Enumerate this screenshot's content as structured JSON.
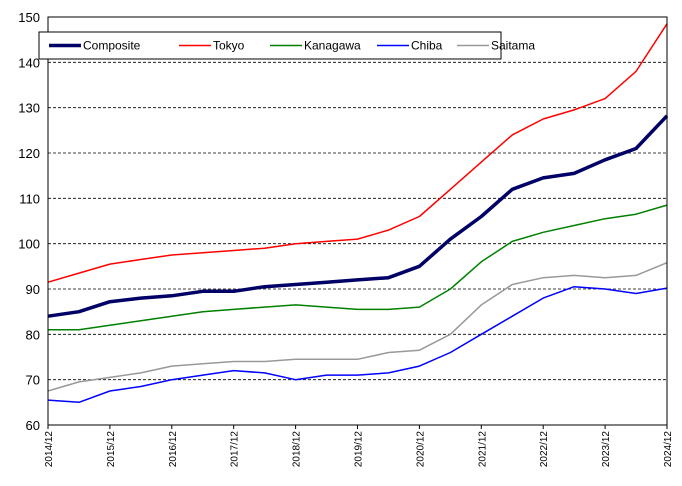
{
  "chart_data": {
    "type": "line",
    "title": "",
    "xlabel": "",
    "ylabel": "",
    "ylim": [
      60,
      150
    ],
    "yticks": [
      60,
      70,
      80,
      90,
      100,
      110,
      120,
      130,
      140,
      150
    ],
    "grid": "horizontal dashed",
    "legend_position": "top-left",
    "x_ticks": [
      "2014/12",
      "2015/12",
      "2016/12",
      "2017/12",
      "2018/12",
      "2019/12",
      "2020/12",
      "2021/12",
      "2022/12",
      "2023/12",
      "2024/12"
    ],
    "x_start": "2014/12",
    "x_end": "2024/12",
    "series": [
      {
        "name": "Composite",
        "color": "#000066",
        "points": [
          [
            0,
            84
          ],
          [
            6,
            85
          ],
          [
            12,
            87.2
          ],
          [
            18,
            88
          ],
          [
            24,
            88.5
          ],
          [
            30,
            89.5
          ],
          [
            36,
            89.5
          ],
          [
            42,
            90.5
          ],
          [
            48,
            91
          ],
          [
            54,
            91.5
          ],
          [
            60,
            92
          ],
          [
            66,
            92.5
          ],
          [
            72,
            95
          ],
          [
            78,
            101
          ],
          [
            84,
            106
          ],
          [
            90,
            112
          ],
          [
            96,
            114.5
          ],
          [
            102,
            115.5
          ],
          [
            108,
            118.5
          ],
          [
            114,
            121
          ],
          [
            120,
            128.2
          ]
        ]
      },
      {
        "name": "Tokyo",
        "color": "#ff0000",
        "points": [
          [
            0,
            91.5
          ],
          [
            6,
            93.5
          ],
          [
            12,
            95.5
          ],
          [
            18,
            96.5
          ],
          [
            24,
            97.5
          ],
          [
            30,
            98
          ],
          [
            36,
            98.5
          ],
          [
            42,
            99
          ],
          [
            48,
            100
          ],
          [
            54,
            100.5
          ],
          [
            60,
            101
          ],
          [
            66,
            103
          ],
          [
            72,
            106
          ],
          [
            78,
            112
          ],
          [
            84,
            118
          ],
          [
            90,
            124
          ],
          [
            96,
            127.5
          ],
          [
            102,
            129.5
          ],
          [
            108,
            132
          ],
          [
            114,
            138
          ],
          [
            120,
            148.5
          ]
        ]
      },
      {
        "name": "Kanagawa",
        "color": "#008000",
        "points": [
          [
            0,
            81
          ],
          [
            6,
            81
          ],
          [
            12,
            82
          ],
          [
            18,
            83
          ],
          [
            24,
            84
          ],
          [
            30,
            85
          ],
          [
            36,
            85.5
          ],
          [
            42,
            86
          ],
          [
            48,
            86.5
          ],
          [
            54,
            86
          ],
          [
            60,
            85.5
          ],
          [
            66,
            85.5
          ],
          [
            72,
            86
          ],
          [
            78,
            90
          ],
          [
            84,
            96
          ],
          [
            90,
            100.5
          ],
          [
            96,
            102.5
          ],
          [
            102,
            104
          ],
          [
            108,
            105.5
          ],
          [
            114,
            106.5
          ],
          [
            120,
            108.5
          ]
        ]
      },
      {
        "name": "Chiba",
        "color": "#0000ff",
        "points": [
          [
            0,
            65.5
          ],
          [
            6,
            65
          ],
          [
            12,
            67.5
          ],
          [
            18,
            68.5
          ],
          [
            24,
            70
          ],
          [
            30,
            71
          ],
          [
            36,
            72
          ],
          [
            42,
            71.5
          ],
          [
            48,
            70
          ],
          [
            54,
            71
          ],
          [
            60,
            71
          ],
          [
            66,
            71.5
          ],
          [
            72,
            73
          ],
          [
            78,
            76
          ],
          [
            84,
            80
          ],
          [
            90,
            84
          ],
          [
            96,
            88
          ],
          [
            102,
            90.5
          ],
          [
            108,
            90
          ],
          [
            114,
            89
          ],
          [
            120,
            90.2
          ]
        ]
      },
      {
        "name": "Saitama",
        "color": "#999999",
        "points": [
          [
            0,
            67.5
          ],
          [
            6,
            69.5
          ],
          [
            12,
            70.5
          ],
          [
            18,
            71.5
          ],
          [
            24,
            73
          ],
          [
            30,
            73.5
          ],
          [
            36,
            74
          ],
          [
            42,
            74
          ],
          [
            48,
            74.5
          ],
          [
            54,
            74.5
          ],
          [
            60,
            74.5
          ],
          [
            66,
            76
          ],
          [
            72,
            76.5
          ],
          [
            78,
            80
          ],
          [
            84,
            86.5
          ],
          [
            90,
            91
          ],
          [
            96,
            92.5
          ],
          [
            102,
            93
          ],
          [
            108,
            92.5
          ],
          [
            114,
            93
          ],
          [
            120,
            95.8
          ]
        ]
      }
    ]
  }
}
